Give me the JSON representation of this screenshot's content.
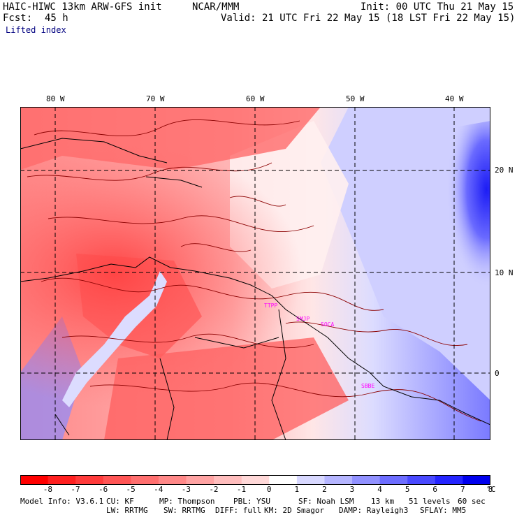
{
  "header": {
    "model_title": "HAIC-HIWC 13km ARW-GFS init",
    "org": "NCAR/MMM",
    "init_line": "Init: 00 UTC Thu 21 May 15",
    "fcst_label": "Fcst:",
    "fcst_value": "45 h",
    "valid_line": "Valid: 21 UTC Fri 22 May 15 (18 LST Fri 22 May 15)",
    "field_name": "Lifted index"
  },
  "map": {
    "lon_labels": [
      "80 W",
      "70 W",
      "60 W",
      "50 W",
      "40 W"
    ],
    "lat_labels": [
      "20 N",
      "10 N",
      "0"
    ],
    "stations": [
      "TTPP",
      "SMJP",
      "SOCA",
      "SBBE"
    ],
    "colors": {
      "pos_max": "#0000ee",
      "pos_light": "#ddddff",
      "neutral": "#ffffff",
      "neg_light": "#ffd8d8",
      "neg_max": "#ff0000",
      "contour": "#8b0000",
      "coast": "#000000",
      "station": "#ff00ff"
    }
  },
  "colorbar": {
    "ticks": [
      "-8",
      "-7",
      "-6",
      "-5",
      "-4",
      "-3",
      "-2",
      "-1",
      "0",
      "1",
      "2",
      "3",
      "4",
      "5",
      "6",
      "7",
      "8"
    ],
    "unit": "°C",
    "colors": [
      "#ff0000",
      "#ff2020",
      "#ff3b3b",
      "#ff5555",
      "#ff6f6f",
      "#ff8888",
      "#ffa3a3",
      "#ffbdbd",
      "#ffd8d8",
      "#ffffff",
      "#d8d8ff",
      "#b5b5ff",
      "#9191ff",
      "#6d6dff",
      "#4949ff",
      "#2424ff",
      "#0000ee"
    ]
  },
  "footer": {
    "line1": [
      "Model Info: V3.6.1",
      "CU: KF",
      "MP: Thompson",
      "PBL: YSU",
      "SF: Noah LSM",
      "13 km",
      "51 levels",
      "60 sec"
    ],
    "line2": [
      "LW: RRTMG",
      "SW: RRTMG",
      "DIFF: full",
      "KM: 2D Smagor",
      "DAMP: Rayleigh3",
      "SFLAY: MM5"
    ]
  }
}
